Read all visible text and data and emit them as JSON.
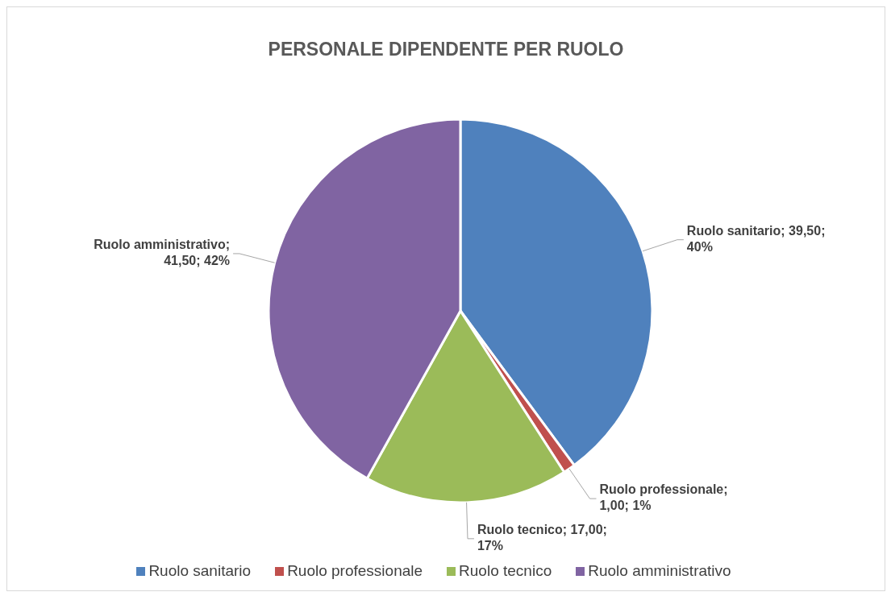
{
  "chart_data": {
    "type": "pie",
    "title": "PERSONALE DIPENDENTE PER RUOLO",
    "categories": [
      "Ruolo sanitario",
      "Ruolo professionale",
      "Ruolo tecnico",
      "Ruolo amministrativo"
    ],
    "values": [
      39.5,
      1,
      17,
      41.5
    ],
    "colors": [
      "#4f81bd",
      "#c0504d",
      "#9bbb59",
      "#8064a2"
    ],
    "value_labels": [
      "Ruolo sanitario; 39,50; 40%",
      "Ruolo professionale; 1,00; 1%",
      "Ruolo tecnico; 17,00; 17%",
      "Ruolo amministrativo; 41,50; 42%"
    ],
    "legend": "bottom"
  }
}
